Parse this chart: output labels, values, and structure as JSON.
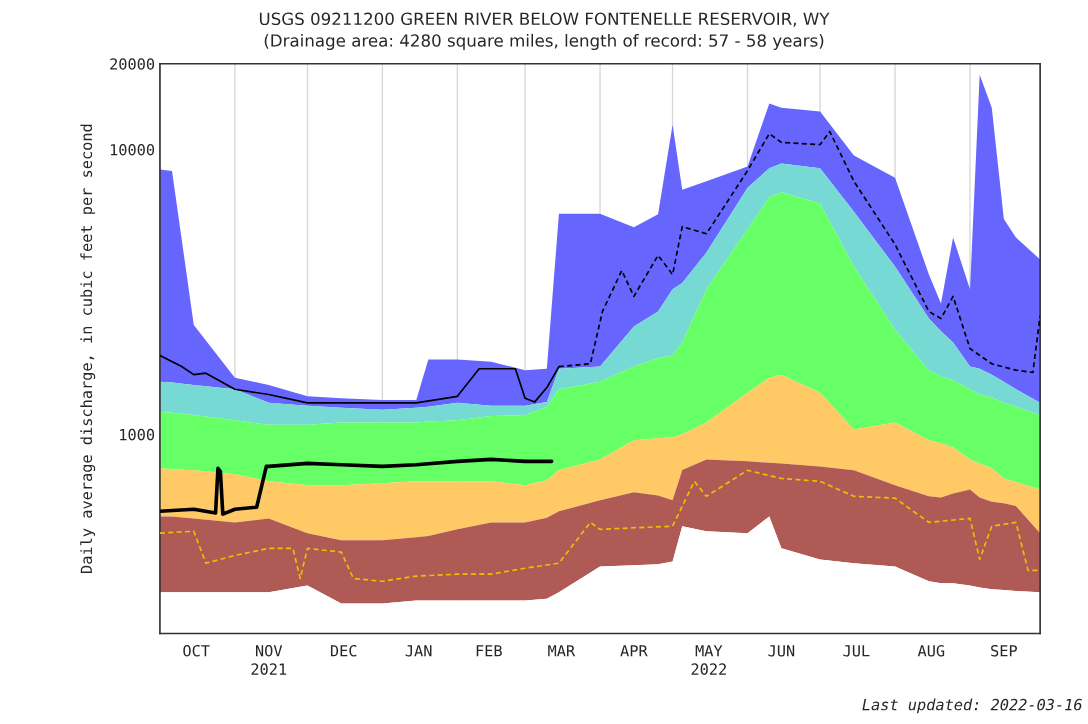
{
  "chart_data": {
    "type": "area",
    "title": "USGS 09211200 GREEN RIVER BELOW FONTENELLE RESERVOIR, WY",
    "subtitle": "(Drainage area: 4280 square miles, length of record: 57 - 58 years)",
    "ylabel": "Daily average discharge, in cubic feet per second",
    "annotations": [
      "Last updated: 2022-03-16"
    ],
    "log": "y",
    "ylim": [
      200,
      20000
    ],
    "yticks": [
      1000,
      10000,
      20000
    ],
    "xlim": [
      "2021-10-01",
      "2022-09-30"
    ],
    "xticks": [
      {
        "value": "2021-10-01",
        "label": null
      },
      {
        "value": "2021-10-16",
        "label": "OCT"
      },
      {
        "value": "2021-11-01",
        "label": null
      },
      {
        "value": "2021-11-15",
        "label": "NOV\n2021"
      },
      {
        "value": "2021-12-01",
        "label": null
      },
      {
        "value": "2021-12-16",
        "label": "DEC"
      },
      {
        "value": "2022-01-01",
        "label": null
      },
      {
        "value": "2022-01-16",
        "label": "JAN"
      },
      {
        "value": "2022-02-01",
        "label": null
      },
      {
        "value": "2022-02-14",
        "label": "FEB"
      },
      {
        "value": "2022-03-01",
        "label": null
      },
      {
        "value": "2022-03-16",
        "label": "MAR"
      },
      {
        "value": "2022-04-01",
        "label": null
      },
      {
        "value": "2022-04-15",
        "label": "APR"
      },
      {
        "value": "2022-05-01",
        "label": null
      },
      {
        "value": "2022-05-16",
        "label": "MAY\n2022"
      },
      {
        "value": "2022-06-01",
        "label": null
      },
      {
        "value": "2022-06-15",
        "label": "JUN"
      },
      {
        "value": "2022-07-01",
        "label": null
      },
      {
        "value": "2022-07-16",
        "label": "JUL"
      },
      {
        "value": "2022-08-01",
        "label": null
      },
      {
        "value": "2022-08-16",
        "label": "AUG"
      },
      {
        "value": "2022-09-01",
        "label": null
      },
      {
        "value": "2022-09-15",
        "label": "SEP"
      }
    ],
    "grid": "x",
    "legend": false,
    "x": [
      "2021-10-01",
      "2021-10-06",
      "2021-10-15",
      "2021-11-01",
      "2021-11-15",
      "2021-12-01",
      "2021-12-15",
      "2022-01-01",
      "2022-01-15",
      "2022-01-20",
      "2022-02-01",
      "2022-02-15",
      "2022-03-01",
      "2022-03-10",
      "2022-03-15",
      "2022-04-01",
      "2022-04-15",
      "2022-04-25",
      "2022-05-01",
      "2022-05-05",
      "2022-05-15",
      "2022-06-01",
      "2022-06-10",
      "2022-06-15",
      "2022-07-01",
      "2022-07-15",
      "2022-08-01",
      "2022-08-15",
      "2022-08-20",
      "2022-08-25",
      "2022-09-01",
      "2022-09-05",
      "2022-09-10",
      "2022-09-15",
      "2022-09-20",
      "2022-09-30"
    ],
    "series": [
      {
        "color": "#6666ff",
        "values": [
          8500,
          8400,
          2420,
          1580,
          1490,
          1360,
          1340,
          1320,
          1320,
          1830,
          1830,
          1800,
          1680,
          1700,
          5950,
          5950,
          5330,
          5920,
          12200,
          7220,
          7730,
          8720,
          14500,
          14000,
          13600,
          9530,
          7960,
          3640,
          2880,
          4910,
          3230,
          18300,
          14000,
          5700,
          4910,
          4110
        ]
      },
      {
        "color": "#77d9d4",
        "values": [
          1530,
          1520,
          1490,
          1440,
          1290,
          1260,
          1240,
          1220,
          1240,
          1250,
          1290,
          1260,
          1260,
          1300,
          1700,
          1730,
          2390,
          2700,
          3230,
          3400,
          4350,
          7340,
          8600,
          8930,
          8590,
          6050,
          3880,
          2550,
          2300,
          2100,
          1730,
          1700,
          1620,
          1530,
          1440,
          1290
        ]
      },
      {
        "color": "#66ff66",
        "values": [
          1200,
          1190,
          1170,
          1120,
          1080,
          1080,
          1100,
          1100,
          1100,
          1110,
          1120,
          1160,
          1170,
          1250,
          1440,
          1530,
          1730,
          1850,
          1890,
          2100,
          3230,
          5250,
          6800,
          7070,
          6460,
          3880,
          2330,
          1680,
          1600,
          1550,
          1440,
          1380,
          1350,
          1290,
          1250,
          1170
        ]
      },
      {
        "color": "#ffc966",
        "values": [
          760,
          755,
          748,
          724,
          684,
          663,
          663,
          673,
          684,
          684,
          684,
          684,
          663,
          690,
          748,
          817,
          953,
          970,
          976,
          1000,
          1100,
          1400,
          1580,
          1620,
          1400,
          1040,
          1100,
          953,
          930,
          900,
          817,
          790,
          760,
          700,
          680,
          641
        ]
      },
      {
        "color": "#b05a55",
        "values": [
          515,
          515,
          507,
          491,
          507,
          450,
          425,
          425,
          435,
          440,
          464,
          491,
          491,
          510,
          537,
          587,
          626,
          610,
          587,
          750,
          817,
          804,
          795,
          791,
          772,
          748,
          663,
          606,
          600,
          620,
          641,
          600,
          580,
          573,
          560,
          450
        ]
      },
      {
        "color": "#ffffff",
        "values": [
          279,
          279,
          279,
          279,
          279,
          295,
          255,
          255,
          261,
          261,
          261,
          261,
          261,
          265,
          279,
          344,
          347,
          350,
          358,
          476,
          457,
          450,
          515,
          398,
          364,
          353,
          344,
          305,
          300,
          300,
          295,
          290,
          286,
          284,
          282,
          279
        ]
      },
      {
        "type": "line",
        "color": "#000000",
        "line_style": "solid",
        "x": [
          "2021-10-01",
          "2021-10-10",
          "2021-10-15",
          "2021-10-20",
          "2021-11-01",
          "2021-11-15",
          "2021-12-01",
          "2021-12-15",
          "2022-01-01",
          "2022-01-15",
          "2022-02-01",
          "2022-02-10",
          "2022-02-25",
          "2022-03-01",
          "2022-03-05",
          "2022-03-10",
          "2022-03-15"
        ],
        "values": [
          1890,
          1730,
          1620,
          1640,
          1440,
          1380,
          1290,
          1290,
          1290,
          1290,
          1360,
          1700,
          1700,
          1340,
          1300,
          1460,
          1730
        ]
      },
      {
        "type": "line",
        "color": "#000000",
        "line_style": "dashed",
        "x": [
          "2022-03-15",
          "2022-03-28",
          "2022-04-02",
          "2022-04-10",
          "2022-04-15",
          "2022-04-25",
          "2022-05-01",
          "2022-05-05",
          "2022-05-15",
          "2022-06-01",
          "2022-06-10",
          "2022-06-15",
          "2022-07-01",
          "2022-07-05",
          "2022-07-15",
          "2022-08-01",
          "2022-08-15",
          "2022-08-20",
          "2022-08-25",
          "2022-09-01",
          "2022-09-10",
          "2022-09-20",
          "2022-09-27",
          "2022-09-30"
        ],
        "values": [
          1730,
          1770,
          2700,
          3760,
          3050,
          4250,
          3640,
          5360,
          5060,
          8430,
          11360,
          10590,
          10400,
          11560,
          7730,
          4640,
          2700,
          2550,
          3050,
          2000,
          1770,
          1680,
          1650,
          2610
        ]
      },
      {
        "type": "line",
        "color": "#e8c100",
        "line_style": "dashed",
        "x": [
          "2021-10-01",
          "2021-10-15",
          "2021-10-20",
          "2021-11-01",
          "2021-11-15",
          "2021-11-25",
          "2021-11-28",
          "2021-12-01",
          "2021-12-15",
          "2021-12-20",
          "2022-01-01",
          "2022-01-15",
          "2022-02-01",
          "2022-02-15",
          "2022-03-01",
          "2022-03-15",
          "2022-03-28",
          "2022-04-01",
          "2022-04-15",
          "2022-05-01",
          "2022-05-10",
          "2022-05-15",
          "2022-06-01",
          "2022-06-15",
          "2022-07-01",
          "2022-07-15",
          "2022-08-01",
          "2022-08-15",
          "2022-09-01",
          "2022-09-05",
          "2022-09-10",
          "2022-09-20",
          "2022-09-25",
          "2022-09-30"
        ],
        "values": [
          450,
          457,
          353,
          376,
          398,
          398,
          312,
          398,
          386,
          312,
          305,
          318,
          323,
          323,
          339,
          353,
          491,
          464,
          470,
          476,
          684,
          606,
          748,
          700,
          684,
          606,
          597,
          491,
          507,
          364,
          476,
          491,
          333,
          333
        ]
      },
      {
        "type": "line",
        "color": "#000000",
        "line_style": "solid",
        "x": [
          "2021-10-01",
          "2021-10-15",
          "2021-10-24",
          "2021-10-25",
          "2021-10-26",
          "2021-10-27",
          "2021-11-01",
          "2021-11-10",
          "2021-11-14",
          "2021-11-15",
          "2021-12-01",
          "2021-12-15",
          "2022-01-01",
          "2022-01-15",
          "2022-02-01",
          "2022-02-15",
          "2022-03-01",
          "2022-03-12"
        ],
        "values": [
          537,
          546,
          530,
          760,
          740,
          525,
          546,
          555,
          772,
          772,
          791,
          782,
          772,
          782,
          804,
          817,
          804,
          804
        ]
      }
    ]
  }
}
